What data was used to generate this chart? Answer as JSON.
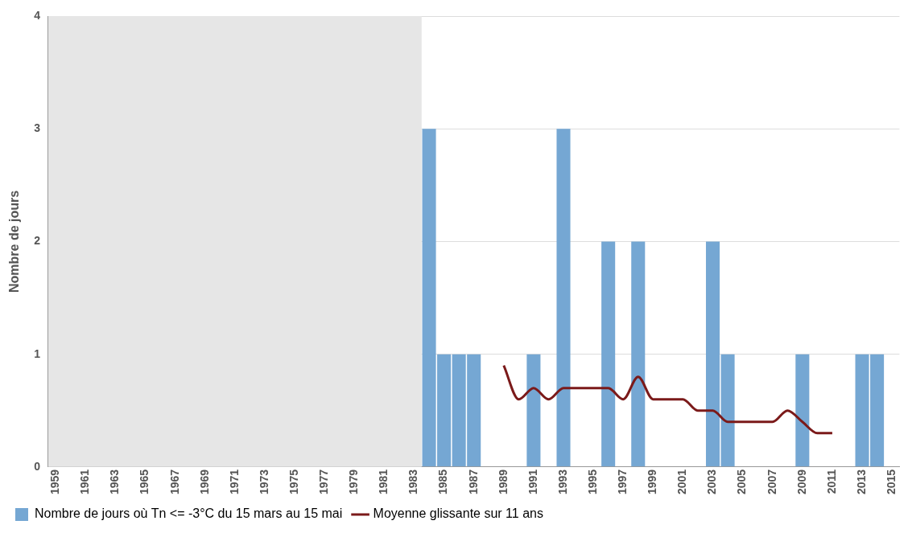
{
  "chart_data": {
    "type": "bar",
    "ylabel": "Nombre de jours",
    "categories": [
      "1959",
      null,
      "1961",
      null,
      "1963",
      null,
      "1965",
      null,
      "1967",
      null,
      "1969",
      null,
      "1971",
      null,
      "1973",
      null,
      "1975",
      null,
      "1977",
      null,
      "1979",
      null,
      "1981",
      null,
      "1983",
      null,
      "1985",
      null,
      "1987",
      null,
      "1989",
      null,
      "1991",
      null,
      "1993",
      null,
      "1995",
      null,
      "1997",
      null,
      "1999",
      null,
      "2001",
      null,
      "2003",
      null,
      "2005",
      null,
      "2007",
      null,
      "2009",
      null,
      "2011",
      null,
      "2013",
      null,
      "2015"
    ],
    "series": [
      {
        "name": "Nombre de jours où Tn <= -3°C du 15 mars au 15 mai",
        "color": "#75a7d3",
        "values": [
          null,
          null,
          null,
          null,
          null,
          null,
          null,
          null,
          null,
          null,
          null,
          null,
          null,
          null,
          null,
          null,
          null,
          null,
          null,
          null,
          null,
          null,
          null,
          null,
          null,
          3,
          1,
          1,
          1,
          0,
          0,
          0,
          1,
          0,
          3,
          0,
          0,
          2,
          0,
          2,
          0,
          0,
          0,
          0,
          2,
          1,
          0,
          0,
          0,
          0,
          1,
          0,
          0,
          0,
          1,
          1,
          0
        ]
      },
      {
        "name": "Moyenne glissante sur 11 ans",
        "type": "line",
        "color": "#7b1a1a",
        "values": [
          null,
          null,
          null,
          null,
          null,
          null,
          null,
          null,
          null,
          null,
          null,
          null,
          null,
          null,
          null,
          null,
          null,
          null,
          null,
          null,
          null,
          null,
          null,
          null,
          null,
          null,
          null,
          null,
          null,
          null,
          0.9,
          0.6,
          0.7,
          0.6,
          0.7,
          0.7,
          0.7,
          0.7,
          0.6,
          0.8,
          0.6,
          0.6,
          0.6,
          0.5,
          0.5,
          0.4,
          0.4,
          0.4,
          0.4,
          0.5,
          0.4,
          0.3,
          0.3,
          null,
          null,
          null,
          null
        ]
      }
    ],
    "ylim": [
      0,
      4
    ],
    "yticks": [
      0,
      1,
      2,
      3,
      4
    ],
    "grid": "y",
    "legend": "bottom left",
    "marker": "none",
    "bands": [
      {
        "axis": "x",
        "from": "1959",
        "to": "1983",
        "color": "#e6e6e6"
      }
    ]
  }
}
